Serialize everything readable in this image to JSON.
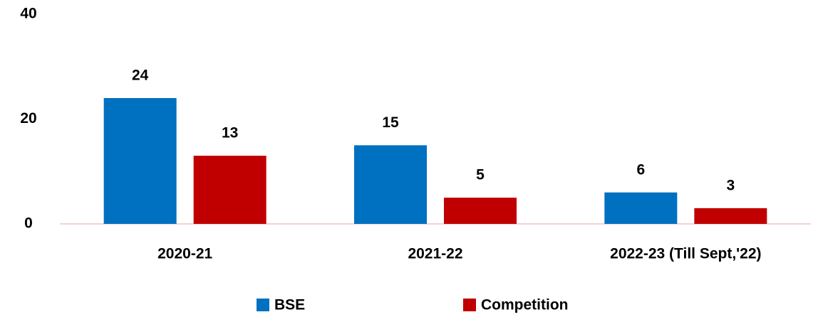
{
  "chart_data": {
    "type": "bar",
    "categories": [
      "2020-21",
      "2021-22",
      "2022-23 (Till Sept,'22)"
    ],
    "series": [
      {
        "name": "BSE",
        "color": "#0070c0",
        "values": [
          24,
          15,
          6
        ]
      },
      {
        "name": "Competition",
        "color": "#c00000",
        "values": [
          13,
          5,
          3
        ]
      }
    ],
    "ylim": [
      0,
      40
    ],
    "yticks": [
      0,
      20,
      40
    ],
    "grid": false,
    "legend": "bottom"
  }
}
